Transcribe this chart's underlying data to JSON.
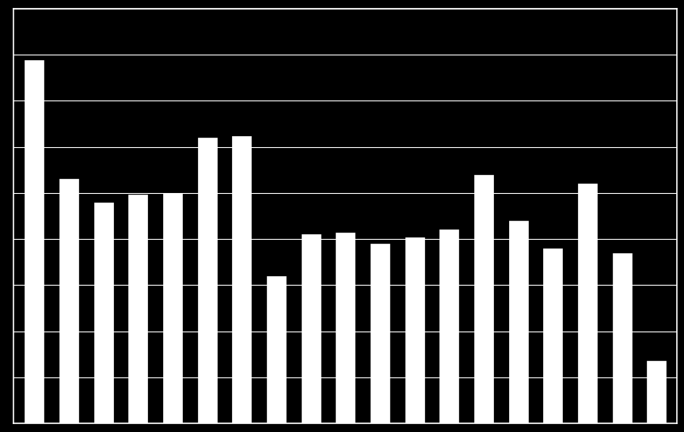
{
  "values": [
    3938,
    2650,
    2400,
    2480,
    2500,
    3100,
    3120,
    1600,
    2050,
    2070,
    1950,
    2020,
    2100,
    2700,
    2200,
    1900,
    2600,
    1850,
    675
  ],
  "bar_color": "#ffffff",
  "background_color": "#000000",
  "grid_color": "#ffffff",
  "axis_color": "#ffffff",
  "ylim": [
    0,
    4500
  ],
  "yticks": [
    0,
    500,
    1000,
    1500,
    2000,
    2500,
    3000,
    3500,
    4000,
    4500
  ],
  "bar_width": 0.55,
  "figsize": [
    8.64,
    5.46
  ],
  "dpi": 100
}
